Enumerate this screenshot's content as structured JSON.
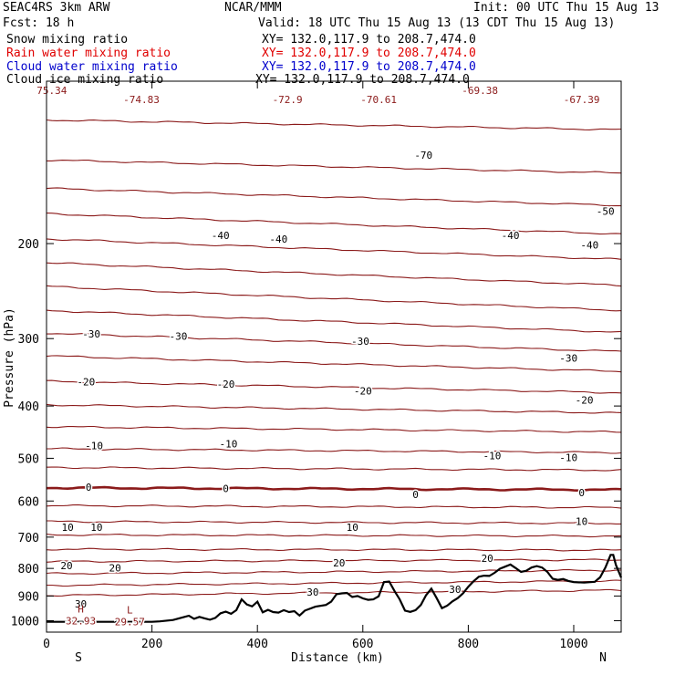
{
  "header": {
    "model": "SEAC4RS  3km ARW",
    "org": "NCAR/MMM",
    "init": "Init: 00 UTC Thu 15 Aug 13",
    "fcst": "Fcst:   18 h",
    "valid": "Valid: 18 UTC Thu 15 Aug 13 (13 CDT Thu 15 Aug 13)"
  },
  "legend": [
    {
      "name": "Snow mixing ratio",
      "xy": "XY= 132.0,117.9 to 208.7,474.0",
      "color": "#000000"
    },
    {
      "name": "Rain water mixing ratio",
      "xy": "XY= 132.0,117.9 to 208.7,474.0",
      "color": "#e00000"
    },
    {
      "name": "Cloud water mixing ratio",
      "xy": "XY= 132.0,117.9 to 208.7,474.0",
      "color": "#0000cc"
    },
    {
      "name": "Cloud ice mixing ratio",
      "xy": "XY= 132.0,117.9 to 208.7,474.0",
      "color": "#000000"
    }
  ],
  "chart_data": {
    "type": "line",
    "xlabel": "Distance (km)",
    "ylabel": "Pressure (hPa)",
    "xlim": [
      0,
      1090
    ],
    "ylim": [
      1050,
      100
    ],
    "y_scale": "log",
    "xticks": [
      0,
      200,
      400,
      600,
      800,
      1000
    ],
    "yticks": [
      200,
      300,
      400,
      500,
      600,
      700,
      800,
      900,
      1000
    ],
    "x_end_labels": {
      "left": "S",
      "right": "N"
    },
    "isotherm_color": "#8b1a1a",
    "terrain_color": "#000000",
    "isotherm_left_pressures": [
      118,
      140,
      158,
      176,
      196,
      217,
      240,
      266,
      293,
      323,
      360,
      398,
      437,
      480,
      520,
      567,
      612,
      655,
      693,
      737,
      777,
      818,
      860,
      898
    ],
    "isotherm_tilts": [
      5,
      8,
      12,
      16,
      18,
      22,
      26,
      26,
      24,
      22,
      18,
      14,
      10,
      8,
      6,
      5,
      5,
      5,
      4,
      3,
      -6,
      -12,
      -16,
      -20
    ],
    "isotherm_labels": [
      {
        "x": 330,
        "p": 193,
        "text": "-40"
      },
      {
        "x": 440,
        "p": 196,
        "text": "-40"
      },
      {
        "x": 880,
        "p": 193,
        "text": "-40"
      },
      {
        "x": 1030,
        "p": 201,
        "text": "-40"
      },
      {
        "x": 1060,
        "p": 174,
        "text": "-50"
      },
      {
        "x": 715,
        "p": 137,
        "text": "-70"
      },
      {
        "x": 85,
        "p": 294,
        "text": "-30"
      },
      {
        "x": 250,
        "p": 297,
        "text": "-30"
      },
      {
        "x": 595,
        "p": 303,
        "text": "-30"
      },
      {
        "x": 990,
        "p": 326,
        "text": "-30"
      },
      {
        "x": 75,
        "p": 361,
        "text": "-20"
      },
      {
        "x": 340,
        "p": 364,
        "text": "-20"
      },
      {
        "x": 600,
        "p": 375,
        "text": "-20"
      },
      {
        "x": 1020,
        "p": 390,
        "text": "-20"
      },
      {
        "x": 90,
        "p": 474,
        "text": "-10"
      },
      {
        "x": 345,
        "p": 470,
        "text": "-10"
      },
      {
        "x": 845,
        "p": 494,
        "text": "-10"
      },
      {
        "x": 990,
        "p": 498,
        "text": "-10"
      },
      {
        "x": 80,
        "p": 565,
        "text": "0"
      },
      {
        "x": 340,
        "p": 569,
        "text": "0"
      },
      {
        "x": 700,
        "p": 583,
        "text": "0"
      },
      {
        "x": 1015,
        "p": 579,
        "text": "0"
      },
      {
        "x": 40,
        "p": 671,
        "text": "10"
      },
      {
        "x": 95,
        "p": 671,
        "text": "10"
      },
      {
        "x": 580,
        "p": 671,
        "text": "10"
      },
      {
        "x": 1015,
        "p": 654,
        "text": "10"
      },
      {
        "x": 38,
        "p": 790,
        "text": "20"
      },
      {
        "x": 130,
        "p": 798,
        "text": "20"
      },
      {
        "x": 555,
        "p": 781,
        "text": "20"
      },
      {
        "x": 836,
        "p": 766,
        "text": "20"
      },
      {
        "x": 65,
        "p": 931,
        "text": "30"
      },
      {
        "x": 505,
        "p": 885,
        "text": "30"
      },
      {
        "x": 775,
        "p": 874,
        "text": "30"
      }
    ],
    "extrema": [
      {
        "x": 10,
        "p": 104,
        "kind": "",
        "value": "75.34"
      },
      {
        "x": 180,
        "p": 108,
        "kind": "",
        "value": "-74.83"
      },
      {
        "x": 457,
        "p": 108,
        "kind": "",
        "value": "-72.9"
      },
      {
        "x": 630,
        "p": 108,
        "kind": "",
        "value": "-70.61"
      },
      {
        "x": 822,
        "p": 104,
        "kind": "",
        "value": "-69.38"
      },
      {
        "x": 1015,
        "p": 108,
        "kind": "",
        "value": "-67.39"
      },
      {
        "x": 65,
        "p": 1000,
        "kind": "H",
        "value": "32.93"
      },
      {
        "x": 158,
        "p": 1005,
        "kind": "L",
        "value": "29.57"
      }
    ],
    "terrain": [
      [
        0,
        1005
      ],
      [
        200,
        1005
      ],
      [
        215,
        1003
      ],
      [
        240,
        997
      ],
      [
        260,
        985
      ],
      [
        270,
        979
      ],
      [
        280,
        992
      ],
      [
        290,
        984
      ],
      [
        300,
        990
      ],
      [
        310,
        996
      ],
      [
        320,
        988
      ],
      [
        330,
        969
      ],
      [
        340,
        962
      ],
      [
        350,
        971
      ],
      [
        360,
        956
      ],
      [
        370,
        913
      ],
      [
        380,
        933
      ],
      [
        390,
        941
      ],
      [
        400,
        922
      ],
      [
        410,
        965
      ],
      [
        420,
        955
      ],
      [
        430,
        964
      ],
      [
        440,
        966
      ],
      [
        450,
        956
      ],
      [
        460,
        964
      ],
      [
        470,
        960
      ],
      [
        480,
        978
      ],
      [
        490,
        958
      ],
      [
        510,
        942
      ],
      [
        530,
        935
      ],
      [
        540,
        922
      ],
      [
        550,
        893
      ],
      [
        560,
        890
      ],
      [
        570,
        888
      ],
      [
        580,
        904
      ],
      [
        590,
        900
      ],
      [
        600,
        909
      ],
      [
        610,
        915
      ],
      [
        620,
        913
      ],
      [
        630,
        901
      ],
      [
        640,
        848
      ],
      [
        650,
        846
      ],
      [
        660,
        881
      ],
      [
        670,
        913
      ],
      [
        680,
        958
      ],
      [
        690,
        963
      ],
      [
        700,
        956
      ],
      [
        710,
        935
      ],
      [
        720,
        897
      ],
      [
        730,
        872
      ],
      [
        740,
        908
      ],
      [
        750,
        948
      ],
      [
        760,
        938
      ],
      [
        770,
        921
      ],
      [
        780,
        908
      ],
      [
        790,
        890
      ],
      [
        800,
        865
      ],
      [
        810,
        845
      ],
      [
        820,
        829
      ],
      [
        830,
        825
      ],
      [
        840,
        826
      ],
      [
        850,
        815
      ],
      [
        860,
        801
      ],
      [
        870,
        794
      ],
      [
        880,
        787
      ],
      [
        890,
        799
      ],
      [
        900,
        812
      ],
      [
        910,
        808
      ],
      [
        920,
        797
      ],
      [
        930,
        792
      ],
      [
        940,
        797
      ],
      [
        950,
        812
      ],
      [
        960,
        836
      ],
      [
        970,
        840
      ],
      [
        980,
        837
      ],
      [
        990,
        844
      ],
      [
        1000,
        848
      ],
      [
        1020,
        850
      ],
      [
        1040,
        847
      ],
      [
        1050,
        831
      ],
      [
        1060,
        797
      ],
      [
        1070,
        755
      ],
      [
        1075,
        755
      ],
      [
        1080,
        788
      ],
      [
        1090,
        832
      ]
    ]
  }
}
